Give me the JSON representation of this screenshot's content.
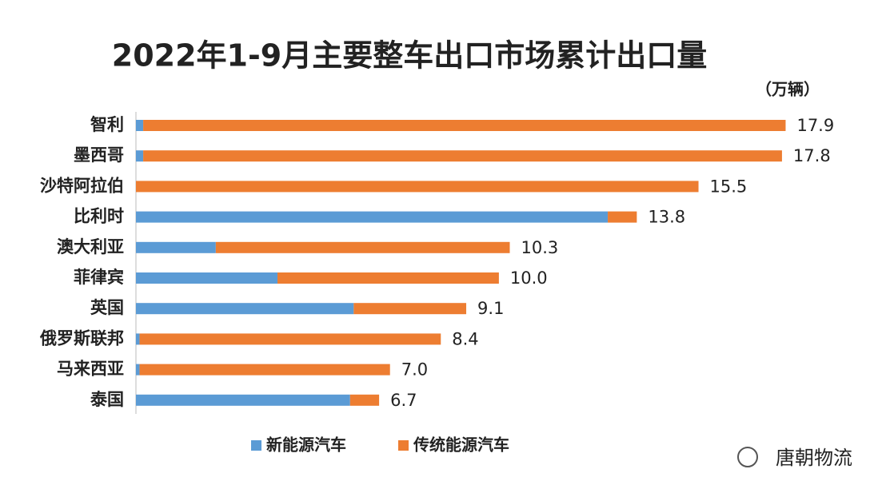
{
  "chart_data": {
    "type": "stacked-barh",
    "title": "2022年1-9月主要整车出口市场累计出口量",
    "unit": "（万辆）",
    "categories": [
      "智利",
      "墨西哥",
      "沙特阿拉伯",
      "比利时",
      "澳大利亚",
      "菲律宾",
      "英国",
      "俄罗斯联邦",
      "马来西亚",
      "泰国"
    ],
    "series": [
      {
        "name": "新能源汽车",
        "color": "#5b9bd5",
        "values": [
          0.2,
          0.2,
          0,
          13.0,
          2.2,
          3.9,
          6.0,
          0.1,
          0.1,
          5.9
        ]
      },
      {
        "name": "传统能源汽车",
        "color": "#ed7d31",
        "values": [
          17.7,
          17.6,
          15.5,
          0.8,
          8.1,
          6.1,
          3.1,
          8.3,
          6.9,
          0.8
        ]
      }
    ],
    "totals": [
      17.9,
      17.8,
      15.5,
      13.8,
      10.3,
      10,
      9.1,
      8.4,
      7,
      6.7
    ],
    "total_labels": [
      "17.9",
      "17.8",
      "15.5",
      "13.8",
      "10.3",
      "10.0",
      "9.1",
      "8.4",
      "7.0",
      "6.7"
    ],
    "xlim": [
      0,
      18
    ],
    "watermark": "唐朝物流"
  }
}
